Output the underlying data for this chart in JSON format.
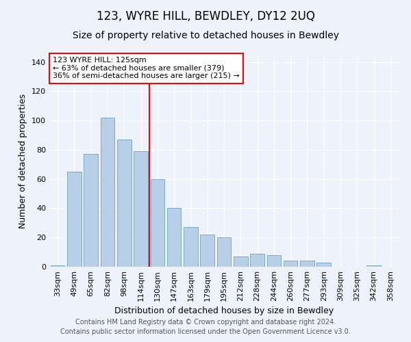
{
  "title": "123, WYRE HILL, BEWDLEY, DY12 2UQ",
  "subtitle": "Size of property relative to detached houses in Bewdley",
  "xlabel": "Distribution of detached houses by size in Bewdley",
  "ylabel": "Number of detached properties",
  "categories": [
    "33sqm",
    "49sqm",
    "65sqm",
    "82sqm",
    "98sqm",
    "114sqm",
    "130sqm",
    "147sqm",
    "163sqm",
    "179sqm",
    "195sqm",
    "212sqm",
    "228sqm",
    "244sqm",
    "260sqm",
    "277sqm",
    "293sqm",
    "309sqm",
    "325sqm",
    "342sqm",
    "358sqm"
  ],
  "values": [
    1,
    65,
    77,
    102,
    87,
    79,
    60,
    40,
    27,
    22,
    20,
    7,
    9,
    8,
    4,
    4,
    3,
    0,
    0,
    1,
    0
  ],
  "bar_color": "#b8cfe8",
  "bar_edge_color": "#7aaad0",
  "vline_x": 5.5,
  "vline_color": "red",
  "annotation_text": "123 WYRE HILL: 125sqm\n← 63% of detached houses are smaller (379)\n36% of semi-detached houses are larger (215) →",
  "annotation_box_color": "white",
  "annotation_box_edge_color": "red",
  "ylim": [
    0,
    145
  ],
  "yticks": [
    0,
    20,
    40,
    60,
    80,
    100,
    120,
    140
  ],
  "footer": "Contains HM Land Registry data © Crown copyright and database right 2024.\nContains public sector information licensed under the Open Government Licence v3.0.",
  "bg_color": "#eef2fa",
  "grid_color": "#ffffff",
  "title_fontsize": 12,
  "subtitle_fontsize": 10,
  "label_fontsize": 9,
  "tick_fontsize": 8,
  "footer_fontsize": 7,
  "annotation_fontsize": 8
}
